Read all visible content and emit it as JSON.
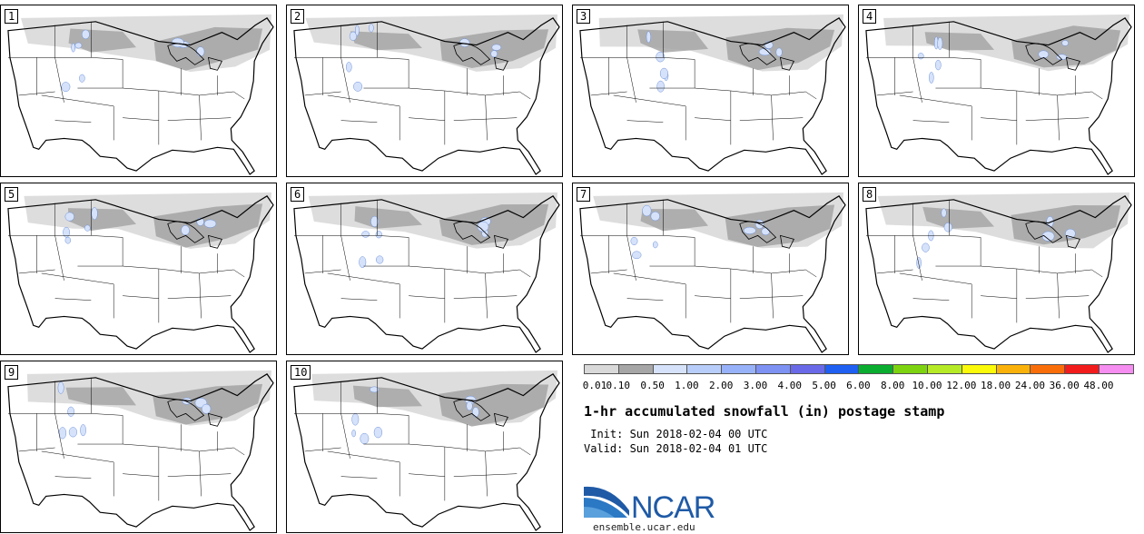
{
  "panels": [
    {
      "label": "1"
    },
    {
      "label": "2"
    },
    {
      "label": "3"
    },
    {
      "label": "4"
    },
    {
      "label": "5"
    },
    {
      "label": "6"
    },
    {
      "label": "7"
    },
    {
      "label": "8"
    },
    {
      "label": "9"
    },
    {
      "label": "10"
    }
  ],
  "legend": {
    "levels": [
      "0.01",
      "0.10",
      "0.50",
      "1.00",
      "2.00",
      "3.00",
      "4.00",
      "5.00",
      "6.00",
      "8.00",
      "10.00",
      "12.00",
      "18.00",
      "24.00",
      "36.00",
      "48.00"
    ],
    "colors": [
      "#d9d9d9",
      "#a6a6a6",
      "#d6e2fa",
      "#b9cdfa",
      "#98b2fa",
      "#7e92f4",
      "#6a6ae8",
      "#1f5ff2",
      "#0aad2f",
      "#7dd30f",
      "#b6ea26",
      "#fafa0a",
      "#fab20a",
      "#fa6e0a",
      "#f21c1c",
      "#f58ef0"
    ]
  },
  "title": "1-hr accumulated snowfall (in) postage stamp",
  "init": " Init: Sun 2018-02-04 00 UTC",
  "valid": "Valid: Sun 2018-02-04 01 UTC",
  "logo_text": "NCAR",
  "site": "ensemble.ucar.edu"
}
